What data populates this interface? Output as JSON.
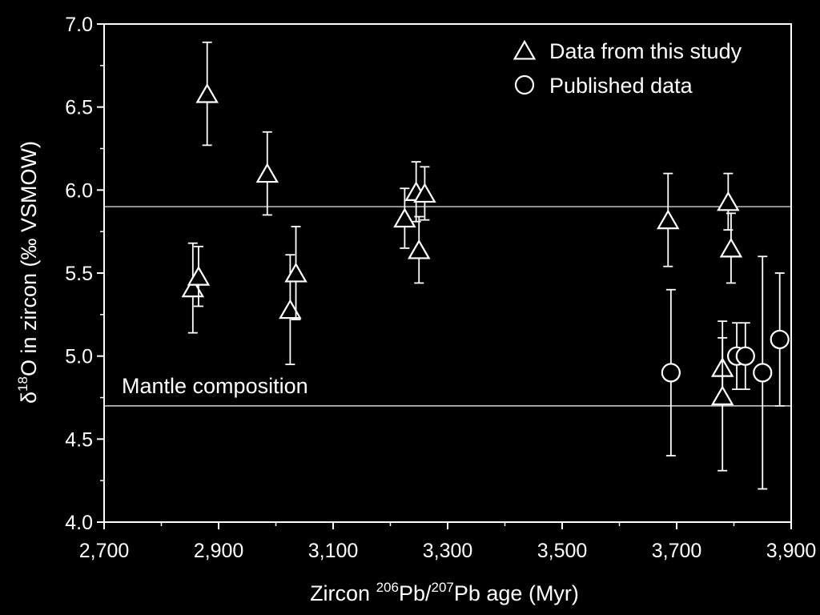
{
  "chart_data": {
    "type": "scatter",
    "title": "",
    "xlabel_parts": [
      "Zircon ",
      "206",
      "Pb/",
      "207",
      "Pb age (Myr)"
    ],
    "ylabel_parts": [
      "δ",
      "18",
      "O in zircon (‰ VSMOW)"
    ],
    "xlim": [
      2700,
      3900
    ],
    "ylim": [
      4.0,
      7.0
    ],
    "x_ticks": [
      2700,
      2900,
      3100,
      3300,
      3500,
      3700,
      3900
    ],
    "x_tick_labels": [
      "2,700",
      "2,900",
      "3,100",
      "3,300",
      "3,500",
      "3,700",
      "3,900"
    ],
    "y_ticks": [
      4.0,
      4.5,
      5.0,
      5.5,
      6.0,
      6.5,
      7.0
    ],
    "y_tick_labels": [
      "4.0",
      "4.5",
      "5.0",
      "5.5",
      "6.0",
      "6.5",
      "7.0"
    ],
    "grid": false,
    "legend_position": "top-right",
    "reference_lines": [
      {
        "y": 5.9,
        "label": ""
      },
      {
        "y": 4.7,
        "label": "Mantle composition"
      }
    ],
    "series": [
      {
        "name": "Data from this study",
        "marker": "triangle",
        "points": [
          {
            "x": 2880,
            "y": 6.58,
            "err": 0.31
          },
          {
            "x": 2985,
            "y": 6.1,
            "err": 0.25
          },
          {
            "x": 2855,
            "y": 5.41,
            "err": 0.27
          },
          {
            "x": 2865,
            "y": 5.48,
            "err": 0.18
          },
          {
            "x": 3025,
            "y": 5.28,
            "err": 0.33
          },
          {
            "x": 3035,
            "y": 5.5,
            "err": 0.28
          },
          {
            "x": 3225,
            "y": 5.83,
            "err": 0.18
          },
          {
            "x": 3245,
            "y": 5.99,
            "err": 0.18
          },
          {
            "x": 3260,
            "y": 5.98,
            "err": 0.16
          },
          {
            "x": 3250,
            "y": 5.64,
            "err": 0.2
          },
          {
            "x": 3685,
            "y": 5.82,
            "err": 0.28
          },
          {
            "x": 3790,
            "y": 5.93,
            "err": 0.17
          },
          {
            "x": 3795,
            "y": 5.65,
            "err": 0.21
          },
          {
            "x": 3780,
            "y": 4.93,
            "err": 0.18
          },
          {
            "x": 3780,
            "y": 4.76,
            "err": 0.45
          }
        ]
      },
      {
        "name": "Published data",
        "marker": "circle",
        "points": [
          {
            "x": 3690,
            "y": 4.9,
            "err": 0.5
          },
          {
            "x": 3805,
            "y": 5.0,
            "err": 0.2
          },
          {
            "x": 3820,
            "y": 5.0,
            "err": 0.2
          },
          {
            "x": 3850,
            "y": 4.9,
            "err": 0.7
          },
          {
            "x": 3880,
            "y": 5.1,
            "err": 0.4
          }
        ]
      }
    ]
  }
}
